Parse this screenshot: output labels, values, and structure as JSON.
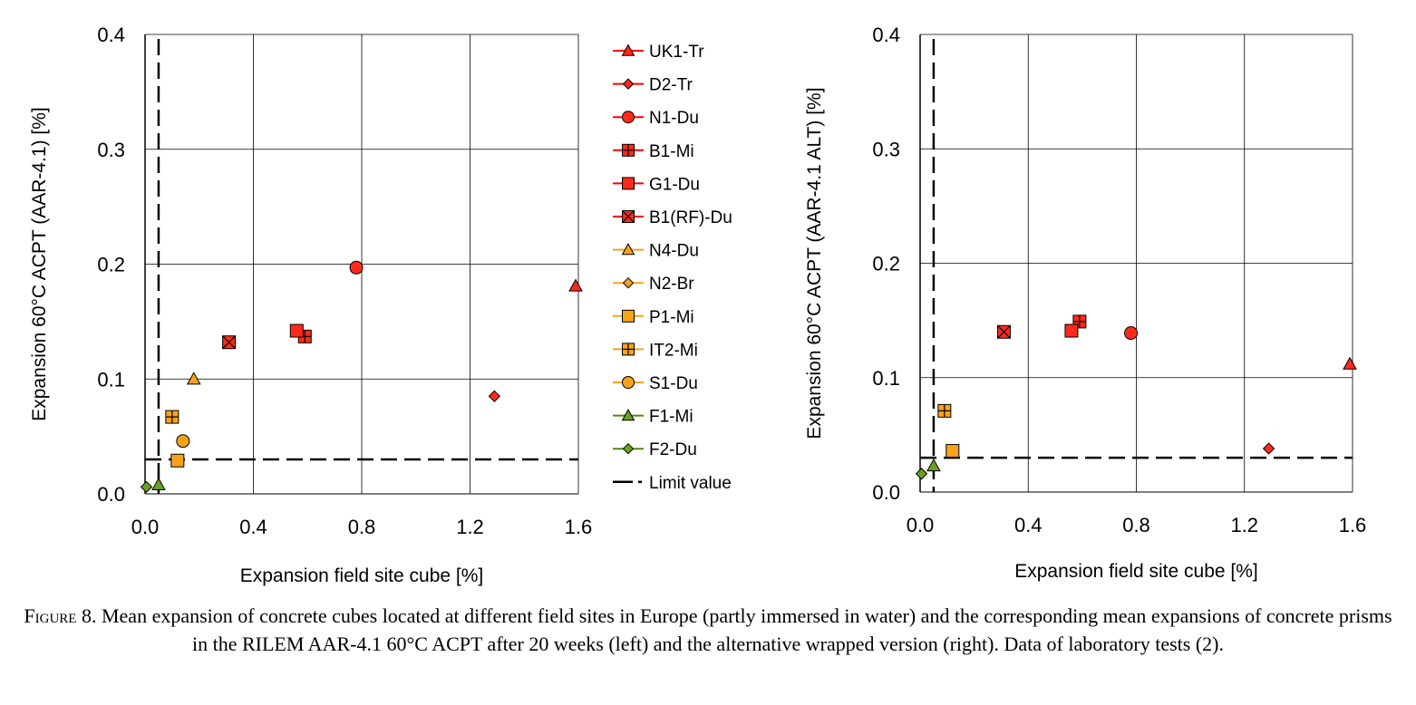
{
  "chart_data": [
    {
      "type": "scatter",
      "panel": "left",
      "xlabel": "Expansion field site cube [%]",
      "ylabel": "Expansion 60°C ACPT (AAR-4.1) [%]",
      "xlim": [
        0,
        1.6
      ],
      "ylim": [
        0,
        0.4
      ],
      "xticks": [
        "0.0",
        "0.4",
        "0.8",
        "1.2",
        "1.6"
      ],
      "yticks": [
        "0.0",
        "0.1",
        "0.2",
        "0.3",
        "0.4"
      ],
      "grid": true,
      "legend": "right",
      "limit_value": {
        "x": 0.05,
        "y": 0.03
      },
      "series": [
        {
          "name": "UK1-Tr",
          "x": [
            1.59
          ],
          "y": [
            0.181
          ]
        },
        {
          "name": "D2-Tr",
          "x": [
            1.29
          ],
          "y": [
            0.085
          ]
        },
        {
          "name": "N1-Du",
          "x": [
            0.78
          ],
          "y": [
            0.197
          ]
        },
        {
          "name": "B1-Mi",
          "x": [
            0.59
          ],
          "y": [
            0.137
          ]
        },
        {
          "name": "G1-Du",
          "x": [
            0.56
          ],
          "y": [
            0.142
          ]
        },
        {
          "name": "B1(RF)-Du",
          "x": [
            0.31
          ],
          "y": [
            0.132
          ]
        },
        {
          "name": "N4-Du",
          "x": [
            0.18
          ],
          "y": [
            0.1
          ]
        },
        {
          "name": "P1-Mi",
          "x": [
            0.12
          ],
          "y": [
            0.029
          ]
        },
        {
          "name": "IT2-Mi",
          "x": [
            0.1
          ],
          "y": [
            0.067
          ]
        },
        {
          "name": "S1-Du",
          "x": [
            0.14
          ],
          "y": [
            0.046
          ]
        },
        {
          "name": "F1-Mi",
          "x": [
            0.05
          ],
          "y": [
            0.008
          ]
        },
        {
          "name": "F2-Du",
          "x": [
            0.005
          ],
          "y": [
            0.006
          ]
        }
      ]
    },
    {
      "type": "scatter",
      "panel": "right",
      "xlabel": "Expansion field site cube [%]",
      "ylabel": "Expansion 60°C ACPT (AAR-4.1 ALT) [%]",
      "xlim": [
        0,
        1.6
      ],
      "ylim": [
        0,
        0.4
      ],
      "xticks": [
        "0.0",
        "0.4",
        "0.8",
        "1.2",
        "1.6"
      ],
      "yticks": [
        "0.0",
        "0.1",
        "0.2",
        "0.3",
        "0.4"
      ],
      "grid": true,
      "limit_value": {
        "x": 0.05,
        "y": 0.03
      },
      "series": [
        {
          "name": "UK1-Tr",
          "x": [
            1.59
          ],
          "y": [
            0.112
          ]
        },
        {
          "name": "D2-Tr",
          "x": [
            1.29
          ],
          "y": [
            0.038
          ]
        },
        {
          "name": "N1-Du",
          "x": [
            0.78
          ],
          "y": [
            0.139
          ]
        },
        {
          "name": "B1-Mi",
          "x": [
            0.59
          ],
          "y": [
            0.149
          ]
        },
        {
          "name": "G1-Du",
          "x": [
            0.56
          ],
          "y": [
            0.141
          ]
        },
        {
          "name": "B1(RF)-Du",
          "x": [
            0.31
          ],
          "y": [
            0.14
          ]
        },
        {
          "name": "P1-Mi",
          "x": [
            0.12
          ],
          "y": [
            0.036
          ]
        },
        {
          "name": "IT2-Mi",
          "x": [
            0.09
          ],
          "y": [
            0.071
          ]
        },
        {
          "name": "F1-Mi",
          "x": [
            0.05
          ],
          "y": [
            0.023
          ]
        },
        {
          "name": "F2-Du",
          "x": [
            0.005
          ],
          "y": [
            0.016
          ]
        }
      ]
    }
  ],
  "legend": {
    "items": [
      {
        "label": "UK1-Tr",
        "marker": "triangle",
        "color": "#ff2a1a",
        "line": "#ff0000"
      },
      {
        "label": "D2-Tr",
        "marker": "diamond",
        "color": "#ff2a1a",
        "line": "#ff0000"
      },
      {
        "label": "N1-Du",
        "marker": "circle",
        "color": "#ff2a1a",
        "line": "#ff0000"
      },
      {
        "label": "B1-Mi",
        "marker": "square-plus",
        "color": "#ff2a1a",
        "line": "#ff0000"
      },
      {
        "label": "G1-Du",
        "marker": "square",
        "color": "#ff2a1a",
        "line": "#ff0000"
      },
      {
        "label": "B1(RF)-Du",
        "marker": "square-x",
        "color": "#ff2a1a",
        "line": "#ff0000"
      },
      {
        "label": "N4-Du",
        "marker": "triangle",
        "color": "#f7a21b",
        "line": "#f7a21b"
      },
      {
        "label": "N2-Br",
        "marker": "diamond",
        "color": "#f7a21b",
        "line": "#f7a21b"
      },
      {
        "label": "P1-Mi",
        "marker": "square",
        "color": "#f7a21b",
        "line": "#f7a21b"
      },
      {
        "label": "IT2-Mi",
        "marker": "square-plus",
        "color": "#f7a21b",
        "line": "#f7a21b"
      },
      {
        "label": "S1-Du",
        "marker": "circle",
        "color": "#f7a21b",
        "line": "#f7a21b"
      },
      {
        "label": "F1-Mi",
        "marker": "triangle",
        "color": "#6aa121",
        "line": "#4f8a10"
      },
      {
        "label": "F2-Du",
        "marker": "diamond",
        "color": "#6aa121",
        "line": "#4f8a10"
      },
      {
        "label": "Limit value",
        "marker": "dash",
        "color": "#000000",
        "line": "#000000"
      }
    ]
  },
  "caption": {
    "label": "Figure 8.",
    "text": "Mean expansion of concrete cubes located at different field sites in Europe (partly immersed in water) and the corresponding mean expansions of concrete prisms in the RILEM AAR-4.1 60°C ACPT after 20 weeks (left) and the alternative wrapped version (right). Data of laboratory tests (2)."
  }
}
